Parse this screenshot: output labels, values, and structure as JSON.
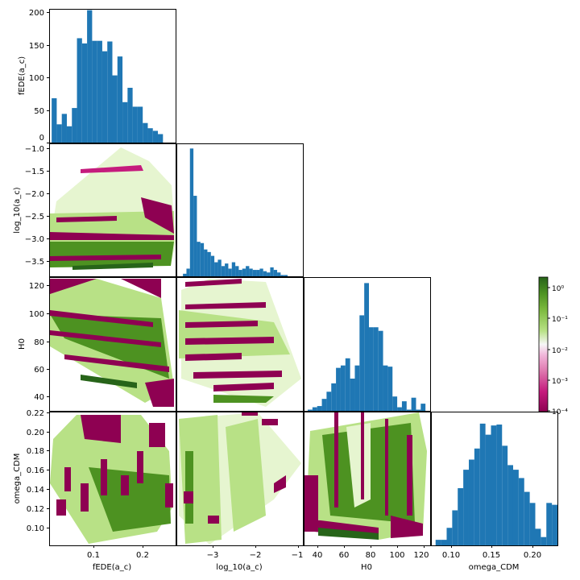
{
  "chart_data": {
    "type": "corner",
    "parameters": [
      "fEDE(a_c)",
      "log_10(a_c)",
      "H0",
      "omega_CDM"
    ],
    "axis_labels": {
      "fEDE": "fEDE(a_c)",
      "log10ac": "log_10(a_c)",
      "H0": "H0",
      "omega_CDM": "omega_CDM"
    },
    "ranges": {
      "fEDE": [
        0.02,
        0.27
      ],
      "log10ac": [
        -3.85,
        -0.95
      ],
      "H0": [
        33,
        127
      ],
      "omega_CDM": [
        0.085,
        0.222
      ]
    },
    "histograms": [
      {
        "name": "fEDE(a_c)",
        "bin_edges": [
          0.025,
          0.035,
          0.045,
          0.055,
          0.065,
          0.075,
          0.085,
          0.095,
          0.105,
          0.115,
          0.125,
          0.135,
          0.145,
          0.155,
          0.165,
          0.175,
          0.185,
          0.195,
          0.205,
          0.215,
          0.225,
          0.235,
          0.245
        ],
        "counts": [
          68,
          28,
          44,
          25,
          53,
          160,
          152,
          203,
          156,
          156,
          140,
          155,
          103,
          132,
          62,
          84,
          55,
          55,
          30,
          22,
          18,
          13
        ],
        "ylim": [
          0,
          205
        ],
        "yticks": [
          "0",
          "50",
          "100",
          "150",
          "200"
        ]
      },
      {
        "name": "log_10(a_c)",
        "bin_edges": [
          -3.7,
          -3.62,
          -3.54,
          -3.46,
          -3.38,
          -3.3,
          -3.22,
          -3.14,
          -3.06,
          -2.98,
          -2.9,
          -2.82,
          -2.74,
          -2.66,
          -2.58,
          -2.5,
          -2.42,
          -2.34,
          -2.26,
          -2.18,
          -2.1,
          -2.02,
          -1.94,
          -1.86,
          -1.78,
          -1.7,
          -1.62,
          -1.54,
          -1.46,
          -1.38,
          -1.3
        ],
        "counts": [
          2,
          6,
          100,
          63,
          27,
          26,
          21,
          19,
          16,
          11,
          13,
          8,
          10,
          6,
          11,
          8,
          5,
          6,
          8,
          6,
          5,
          5,
          6,
          4,
          3,
          7,
          5,
          3,
          1,
          1
        ],
        "ylim": [
          0,
          104
        ]
      },
      {
        "name": "H0",
        "bin_edges": [
          36,
          39.5,
          43,
          46.5,
          50,
          53.5,
          57,
          60.5,
          64,
          67.5,
          71,
          74.5,
          78,
          81.5,
          85,
          88.5,
          92,
          95.5,
          99,
          102.5,
          106,
          109.5,
          113,
          116.5,
          120,
          123.5
        ],
        "counts": [
          1,
          3,
          4,
          10,
          16,
          23,
          36,
          38,
          44,
          27,
          38,
          80,
          107,
          70,
          70,
          67,
          38,
          37,
          12,
          3,
          8,
          1,
          11,
          1,
          6
        ],
        "ylim": [
          0,
          112
        ]
      },
      {
        "name": "omega_CDM",
        "bin_edges": [
          0.09,
          0.096,
          0.102,
          0.108,
          0.114,
          0.12,
          0.126,
          0.132,
          0.138,
          0.144,
          0.15,
          0.156,
          0.162,
          0.168,
          0.174,
          0.18,
          0.186,
          0.192,
          0.198,
          0.204,
          0.21,
          0.216,
          0.222
        ],
        "counts": [
          6,
          6,
          19,
          38,
          62,
          82,
          93,
          105,
          132,
          120,
          130,
          131,
          108,
          87,
          82,
          73,
          58,
          46,
          18,
          9,
          46,
          44
        ],
        "ylim": [
          0,
          145
        ]
      }
    ],
    "tick_labels": {
      "fEDE_x": [
        "0.1",
        "0.2"
      ],
      "fEDE_y": [
        "0",
        "50",
        "100",
        "150",
        "200"
      ],
      "log10ac_x": [
        "−3",
        "−2",
        "−1"
      ],
      "log10ac_y": [
        "−1.0",
        "−1.5",
        "−2.0",
        "−2.5",
        "−3.0",
        "−3.5"
      ],
      "H0_x": [
        "40",
        "60",
        "80",
        "100",
        "120"
      ],
      "H0_y": [
        "120",
        "100",
        "80",
        "60",
        "40"
      ],
      "omega_CDM_x": [
        "0.10",
        "0.15",
        "0.20"
      ],
      "omega_CDM_y": [
        "0.22",
        "0.20",
        "0.18",
        "0.16",
        "0.14",
        "0.12",
        "0.10"
      ]
    },
    "colorbar": {
      "colormap": "PiYG",
      "scale": "log",
      "range": [
        0.0001,
        2
      ],
      "tick_labels": [
        "10⁰",
        "10⁻¹",
        "10⁻²",
        "10⁻³",
        "10⁻⁴"
      ]
    },
    "colors": {
      "bar": "#1f77b4",
      "cmap_low": "#8e0152",
      "cmap_mid": "#f7f7f7",
      "cmap_high": "#276419"
    }
  }
}
